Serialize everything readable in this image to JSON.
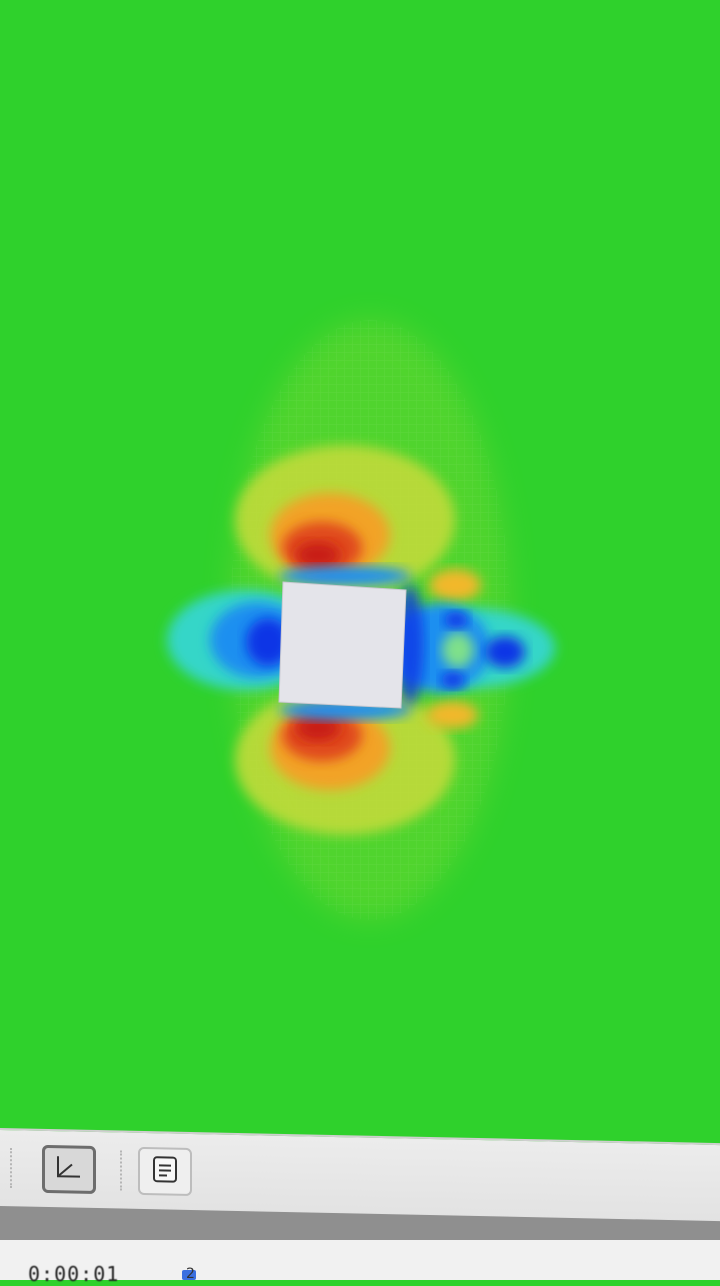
{
  "viewport": {
    "background_color": "#2fd12c",
    "obstacle_color": "#e4e4ea",
    "contour_colors": [
      "#0b36e6",
      "#1f8ff0",
      "#36d6c8",
      "#2fd12c",
      "#d7e13a",
      "#f2a328",
      "#e04a1c",
      "#c81a12"
    ]
  },
  "toolbar": {
    "axes_button_icon": "axes-icon",
    "log_button_icon": "document-icon"
  },
  "statusbar": {
    "time": "0:00:01",
    "extra": "2"
  }
}
